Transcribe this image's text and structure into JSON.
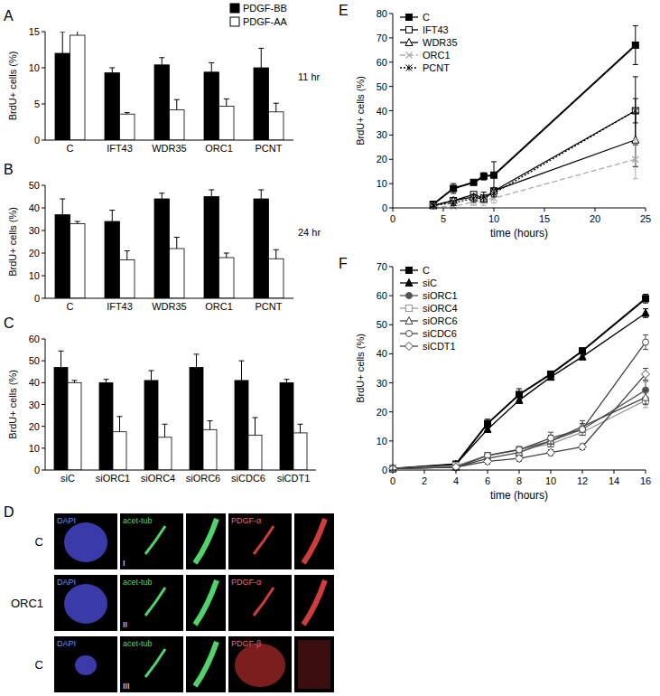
{
  "chart_data": [
    {
      "type": "bar",
      "title": "A",
      "annotation": "11 hr",
      "y_label": "BrdU+ cells (%)",
      "categories": [
        "C",
        "IFT43",
        "WDR35",
        "ORC1",
        "PCNT"
      ],
      "series": [
        {
          "name": "PDGF-BB",
          "color": "#000000",
          "values": [
            12,
            9.3,
            10.4,
            9.4,
            10
          ],
          "errors": [
            3,
            0.7,
            1,
            1.3,
            2.7
          ]
        },
        {
          "name": "PDGF-AA",
          "color": "#ffffff",
          "values": [
            14.5,
            3.6,
            4.2,
            4.7,
            3.9
          ],
          "errors": [
            1.3,
            0.2,
            1.4,
            1,
            1.2
          ]
        }
      ],
      "ylim": [
        0,
        15
      ],
      "yticks": [
        0,
        5,
        10,
        15
      ],
      "legend": "top-right"
    },
    {
      "type": "bar",
      "title": "B",
      "annotation": "24 hr",
      "y_label": "BrdU+ cells (%)",
      "categories": [
        "C",
        "IFT43",
        "WDR35",
        "ORC1",
        "PCNT"
      ],
      "series": [
        {
          "color": "#000000",
          "values": [
            37,
            34,
            44,
            45,
            44
          ],
          "errors": [
            7,
            5,
            2.5,
            3,
            4
          ]
        },
        {
          "color": "#ffffff",
          "values": [
            33,
            17,
            22,
            18,
            17.5
          ],
          "errors": [
            1,
            4,
            5,
            2,
            4
          ]
        }
      ],
      "ylim": [
        0,
        50
      ],
      "yticks": [
        0,
        10,
        20,
        30,
        40,
        50
      ]
    },
    {
      "type": "bar",
      "title": "C",
      "y_label": "BrdU+ cells (%)",
      "categories": [
        "siC",
        "siORC1",
        "siORC4",
        "siORC6",
        "siCDC6",
        "siCDT1"
      ],
      "series": [
        {
          "color": "#000000",
          "values": [
            47,
            40,
            41,
            47,
            41,
            40
          ],
          "errors": [
            7.5,
            1.5,
            4.5,
            6,
            9,
            1.5
          ]
        },
        {
          "color": "#ffffff",
          "values": [
            40,
            17.5,
            15,
            18.5,
            16,
            17
          ],
          "errors": [
            1,
            7,
            6,
            4,
            8,
            4
          ]
        }
      ],
      "ylim": [
        0,
        60
      ],
      "yticks": [
        0,
        10,
        20,
        30,
        40,
        50,
        60
      ]
    },
    {
      "type": "line",
      "title": "E",
      "x_label": "time (hours)",
      "y_label": "BrdU+ cells (%)",
      "x": [
        4,
        6,
        8,
        9,
        10,
        24
      ],
      "series": [
        {
          "name": "C",
          "color": "#000000",
          "marker": "square",
          "line_style": "solid",
          "values": [
            1.5,
            8,
            10.5,
            13,
            13.5,
            67
          ],
          "errors": [
            0.5,
            2,
            1,
            1.5,
            5.5,
            8
          ]
        },
        {
          "name": "IFT43",
          "color": "#000000",
          "marker": "square-open",
          "line_style": "solid",
          "values": [
            1,
            3,
            5.5,
            4,
            7,
            40
          ],
          "errors": [
            0.5,
            1,
            1,
            1,
            1,
            14
          ]
        },
        {
          "name": "WDR35",
          "color": "#000000",
          "marker": "triangle-open",
          "line_style": "solid",
          "values": [
            1,
            3,
            4.5,
            3.5,
            7,
            28
          ],
          "errors": [
            0.5,
            1,
            1,
            1,
            1,
            11
          ]
        },
        {
          "name": "ORC1",
          "color": "#aaaaaa",
          "marker": "x",
          "line_style": "dashed",
          "values": [
            0.5,
            0.5,
            2.5,
            3,
            4,
            20
          ],
          "errors": [
            0.3,
            0.5,
            1.5,
            2,
            2,
            8
          ]
        },
        {
          "name": "PCNT",
          "color": "#000000",
          "marker": "asterisk",
          "line_style": "dotted",
          "values": [
            1,
            2,
            4,
            4.5,
            6,
            40
          ],
          "errors": [
            0.5,
            1,
            1.5,
            2,
            1.5,
            5
          ]
        }
      ],
      "xlim": [
        0,
        25
      ],
      "xticks": [
        0,
        5,
        10,
        15,
        20,
        25
      ],
      "ylim": [
        0,
        80
      ],
      "yticks": [
        0,
        10,
        20,
        30,
        40,
        50,
        60,
        70,
        80
      ],
      "legend": "top-left"
    },
    {
      "type": "line",
      "title": "F",
      "x_label": "time (hours)",
      "y_label": "BrdU+ cells (%)",
      "x": [
        0,
        4,
        6,
        8,
        10,
        12,
        16
      ],
      "series": [
        {
          "name": "C",
          "color": "#000000",
          "marker": "square",
          "line_style": "solid",
          "values": [
            0.5,
            2,
            16,
            26,
            33,
            41,
            59
          ],
          "errors": [
            0.3,
            0.5,
            1.5,
            2,
            1,
            1,
            1.5
          ]
        },
        {
          "name": "siC",
          "color": "#000000",
          "marker": "triangle",
          "line_style": "solid",
          "values": [
            0.5,
            2,
            14,
            24,
            32,
            39,
            54
          ],
          "errors": [
            0.3,
            0.5,
            1,
            1,
            1,
            1,
            1.5
          ]
        },
        {
          "name": "siORC1",
          "color": "#555555",
          "marker": "circle",
          "line_style": "solid",
          "values": [
            0.5,
            1,
            5,
            7,
            10,
            14,
            27.5
          ],
          "errors": [
            0.2,
            0.5,
            1,
            1,
            2,
            1,
            3
          ]
        },
        {
          "name": "siORC4",
          "color": "#999999",
          "marker": "square-open",
          "line_style": "solid",
          "values": [
            0.5,
            1.5,
            5,
            7,
            9,
            13,
            24
          ],
          "errors": [
            0.2,
            0.5,
            1,
            1,
            1,
            1,
            2.5
          ]
        },
        {
          "name": "siORC6",
          "color": "#444444",
          "marker": "triangle-open",
          "line_style": "solid",
          "values": [
            0.5,
            1,
            4,
            6,
            10,
            15,
            25
          ],
          "errors": [
            0.2,
            0.5,
            1,
            1,
            2,
            2,
            2.5
          ]
        },
        {
          "name": "siCDC6",
          "color": "#444444",
          "marker": "circle-open",
          "line_style": "solid",
          "values": [
            0.5,
            1,
            5,
            7,
            11,
            14,
            44
          ],
          "errors": [
            0.2,
            0.5,
            1,
            1,
            2,
            2,
            2.5
          ]
        },
        {
          "name": "siCDT1",
          "color": "#444444",
          "marker": "diamond-open",
          "line_style": "solid",
          "values": [
            0.5,
            1,
            3,
            4,
            6,
            8,
            33
          ],
          "errors": [
            0.2,
            0.5,
            1,
            1,
            1,
            1,
            2
          ]
        }
      ],
      "xlim": [
        0,
        16
      ],
      "xticks": [
        0,
        2,
        4,
        6,
        8,
        10,
        12,
        14,
        16
      ],
      "ylim": [
        0,
        70
      ],
      "yticks": [
        0,
        10,
        20,
        30,
        40,
        50,
        60,
        70
      ],
      "legend": "top-left"
    }
  ],
  "image_panel": {
    "title": "D",
    "rows": [
      {
        "condition": "C",
        "roman": "I",
        "labels": [
          "DAPI",
          "acet-tub",
          "PDGF-α"
        ]
      },
      {
        "condition": "ORC1",
        "roman": "II",
        "labels": [
          "DAPI",
          "acet-tub",
          "PDGF-α"
        ]
      },
      {
        "condition": "C",
        "roman": "III",
        "labels": [
          "DAPI",
          "acet-tub",
          "PDGF-β"
        ]
      }
    ]
  }
}
